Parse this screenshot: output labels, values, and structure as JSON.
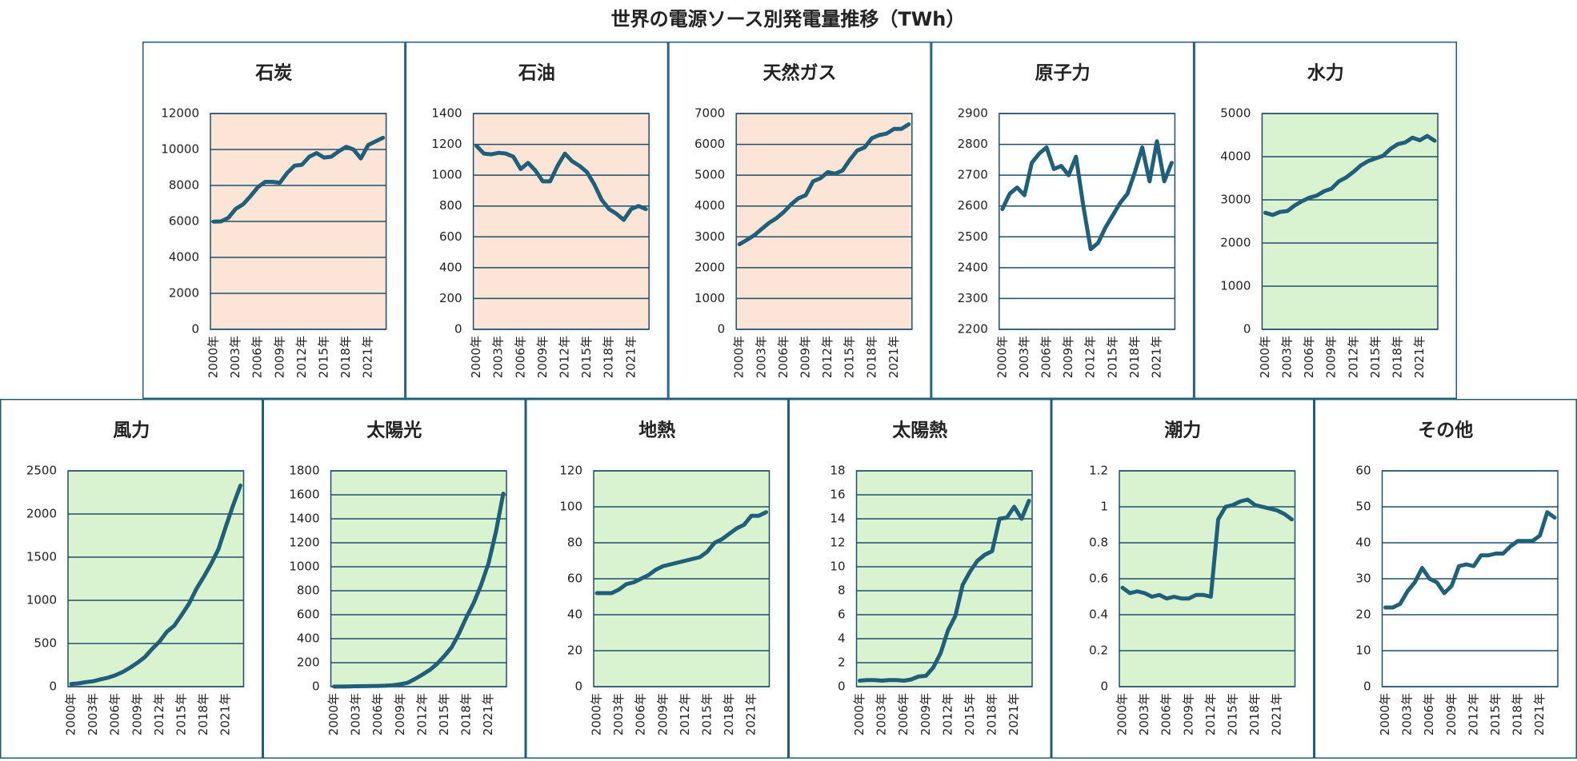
{
  "title": "世界の電源ソース別発電量推移（TWh）",
  "chart_data": [
    {
      "type": "line",
      "title": "石炭",
      "background": "#fce4d6",
      "color": "#1f5f7a",
      "grid": true,
      "categories": [
        "2000年",
        null,
        null,
        "2003年",
        null,
        null,
        "2006年",
        null,
        null,
        "2009年",
        null,
        null,
        "2012年",
        null,
        null,
        "2015年",
        null,
        null,
        "2018年",
        null,
        null,
        "2021年",
        null,
        null
      ],
      "values": [
        5990,
        6000,
        6200,
        6700,
        6950,
        7400,
        7900,
        8200,
        8200,
        8150,
        8700,
        9100,
        9150,
        9600,
        9800,
        9550,
        9600,
        9900,
        10150,
        10000,
        9500,
        10250,
        10450,
        10650
      ],
      "ylim": [
        0,
        12000
      ],
      "yticks": [
        0,
        2000,
        4000,
        6000,
        8000,
        10000,
        12000
      ]
    },
    {
      "type": "line",
      "title": "石油",
      "background": "#fce4d6",
      "color": "#1f5f7a",
      "grid": true,
      "categories": [
        "2000年",
        null,
        null,
        "2003年",
        null,
        null,
        "2006年",
        null,
        null,
        "2009年",
        null,
        null,
        "2012年",
        null,
        null,
        "2015年",
        null,
        null,
        "2018年",
        null,
        null,
        "2021年",
        null,
        null
      ],
      "values": [
        1190,
        1140,
        1135,
        1145,
        1140,
        1120,
        1040,
        1080,
        1030,
        960,
        960,
        1060,
        1140,
        1090,
        1060,
        1020,
        940,
        840,
        780,
        750,
        710,
        780,
        800,
        780
      ],
      "ylim": [
        0,
        1400
      ],
      "yticks": [
        0,
        200,
        400,
        600,
        800,
        1000,
        1200,
        1400
      ]
    },
    {
      "type": "line",
      "title": "天然ガス",
      "background": "#fce4d6",
      "color": "#1f5f7a",
      "grid": true,
      "categories": [
        "2000年",
        null,
        null,
        "2003年",
        null,
        null,
        "2006年",
        null,
        null,
        "2009年",
        null,
        null,
        "2012年",
        null,
        null,
        "2015年",
        null,
        null,
        "2018年",
        null,
        null,
        "2021年",
        null,
        null
      ],
      "values": [
        2760,
        2900,
        3050,
        3250,
        3450,
        3600,
        3800,
        4050,
        4250,
        4350,
        4800,
        4900,
        5100,
        5050,
        5150,
        5500,
        5800,
        5900,
        6200,
        6300,
        6350,
        6500,
        6500,
        6650
      ],
      "ylim": [
        0,
        7000
      ],
      "yticks": [
        0,
        1000,
        2000,
        3000,
        4000,
        5000,
        6000,
        7000
      ]
    },
    {
      "type": "line",
      "title": "原子力",
      "background": "#ffffff",
      "color": "#1f5f7a",
      "grid": true,
      "categories": [
        "2000年",
        null,
        null,
        "2003年",
        null,
        null,
        "2006年",
        null,
        null,
        "2009年",
        null,
        null,
        "2012年",
        null,
        null,
        "2015年",
        null,
        null,
        "2018年",
        null,
        null,
        "2021年",
        null,
        null
      ],
      "values": [
        2590,
        2640,
        2660,
        2635,
        2740,
        2770,
        2790,
        2720,
        2730,
        2700,
        2760,
        2600,
        2460,
        2480,
        2530,
        2570,
        2610,
        2640,
        2710,
        2790,
        2680,
        2810,
        2680,
        2740
      ],
      "ylim": [
        2200,
        2900
      ],
      "yticks": [
        2200,
        2300,
        2400,
        2500,
        2600,
        2700,
        2800,
        2900
      ]
    },
    {
      "type": "line",
      "title": "水力",
      "background": "#d9f2d0",
      "color": "#1f5f7a",
      "grid": true,
      "categories": [
        "2000年",
        null,
        null,
        "2003年",
        null,
        null,
        "2006年",
        null,
        null,
        "2009年",
        null,
        null,
        "2012年",
        null,
        null,
        "2015年",
        null,
        null,
        "2018年",
        null,
        null,
        "2021年",
        null,
        null
      ],
      "values": [
        2700,
        2650,
        2720,
        2740,
        2870,
        2970,
        3050,
        3100,
        3200,
        3260,
        3430,
        3520,
        3650,
        3800,
        3900,
        3960,
        4020,
        4180,
        4290,
        4330,
        4440,
        4380,
        4480,
        4370
      ],
      "ylim": [
        0,
        5000
      ],
      "yticks": [
        0,
        1000,
        2000,
        3000,
        4000,
        5000
      ]
    },
    {
      "type": "line",
      "title": "風力",
      "background": "#d9f2d0",
      "color": "#1f5f7a",
      "grid": true,
      "categories": [
        "2000年",
        null,
        null,
        "2003年",
        null,
        null,
        "2006年",
        null,
        null,
        "2009年",
        null,
        null,
        "2012年",
        null,
        null,
        "2015年",
        null,
        null,
        "2018年",
        null,
        null,
        "2021年",
        null,
        null
      ],
      "values": [
        31,
        38,
        52,
        63,
        85,
        104,
        132,
        170,
        220,
        277,
        342,
        437,
        522,
        636,
        706,
        830,
        960,
        1130,
        1270,
        1420,
        1590,
        1850,
        2100,
        2330
      ],
      "ylim": [
        0,
        2500
      ],
      "yticks": [
        0,
        500,
        1000,
        1500,
        2000,
        2500
      ]
    },
    {
      "type": "line",
      "title": "太陽光",
      "background": "#d9f2d0",
      "color": "#1f5f7a",
      "grid": true,
      "categories": [
        "2000年",
        null,
        null,
        "2003年",
        null,
        null,
        "2006年",
        null,
        null,
        "2009年",
        null,
        null,
        "2012年",
        null,
        null,
        "2015年",
        null,
        null,
        "2018年",
        null,
        null,
        "2021年",
        null,
        null
      ],
      "values": [
        1,
        1,
        2,
        3,
        4,
        5,
        6,
        8,
        12,
        20,
        32,
        64,
        100,
        139,
        190,
        256,
        330,
        445,
        580,
        700,
        850,
        1030,
        1290,
        1610
      ],
      "ylim": [
        0,
        1800
      ],
      "yticks": [
        0,
        200,
        400,
        600,
        800,
        1000,
        1200,
        1400,
        1600,
        1800
      ]
    },
    {
      "type": "line",
      "title": "地熱",
      "background": "#d9f2d0",
      "color": "#1f5f7a",
      "grid": true,
      "categories": [
        "2000年",
        null,
        null,
        "2003年",
        null,
        null,
        "2006年",
        null,
        null,
        "2009年",
        null,
        null,
        "2012年",
        null,
        null,
        "2015年",
        null,
        null,
        "2018年",
        null,
        null,
        "2021年",
        null,
        null
      ],
      "values": [
        52,
        52,
        52,
        54,
        57,
        58,
        60,
        62,
        65,
        67,
        68,
        69,
        70,
        71,
        72,
        75,
        80,
        82,
        85,
        88,
        90,
        95,
        95,
        97
      ],
      "ylim": [
        0,
        120
      ],
      "yticks": [
        0,
        20,
        40,
        60,
        80,
        100,
        120
      ]
    },
    {
      "type": "line",
      "title": "太陽熱",
      "background": "#d9f2d0",
      "color": "#1f5f7a",
      "grid": true,
      "categories": [
        "2000年",
        null,
        null,
        "2003年",
        null,
        null,
        "2006年",
        null,
        null,
        "2009年",
        null,
        null,
        "2012年",
        null,
        null,
        "2015年",
        null,
        null,
        "2018年",
        null,
        null,
        "2021年",
        null,
        null
      ],
      "values": [
        0.5,
        0.55,
        0.55,
        0.5,
        0.55,
        0.55,
        0.5,
        0.6,
        0.85,
        0.9,
        1.6,
        2.8,
        4.7,
        5.9,
        8.5,
        9.6,
        10.5,
        11,
        11.3,
        14,
        14.1,
        15,
        14,
        15.5
      ],
      "ylim": [
        0,
        18
      ],
      "yticks": [
        0,
        2,
        4,
        6,
        8,
        10,
        12,
        14,
        16,
        18
      ]
    },
    {
      "type": "line",
      "title": "潮力",
      "background": "#d9f2d0",
      "color": "#1f5f7a",
      "grid": true,
      "categories": [
        "2000年",
        null,
        null,
        "2003年",
        null,
        null,
        "2006年",
        null,
        null,
        "2009年",
        null,
        null,
        "2012年",
        null,
        null,
        "2015年",
        null,
        null,
        "2018年",
        null,
        null,
        "2021年",
        null,
        null
      ],
      "values": [
        0.55,
        0.52,
        0.53,
        0.52,
        0.5,
        0.51,
        0.49,
        0.5,
        0.49,
        0.49,
        0.51,
        0.51,
        0.5,
        0.93,
        1.0,
        1.01,
        1.03,
        1.04,
        1.01,
        1.0,
        0.99,
        0.98,
        0.96,
        0.93
      ],
      "ylim": [
        0,
        1.2
      ],
      "yticks": [
        0,
        0.2,
        0.4,
        0.6,
        0.8,
        1,
        1.2
      ]
    },
    {
      "type": "line",
      "title": "その他",
      "background": "#ffffff",
      "color": "#1f5f7a",
      "grid": true,
      "categories": [
        "2000年",
        null,
        null,
        "2003年",
        null,
        null,
        "2006年",
        null,
        null,
        "2009年",
        null,
        null,
        "2012年",
        null,
        null,
        "2015年",
        null,
        null,
        "2018年",
        null,
        null,
        "2021年",
        null,
        null
      ],
      "values": [
        22,
        22,
        23,
        26.5,
        29,
        33,
        30,
        29,
        26,
        28,
        33.5,
        34,
        33.5,
        36.5,
        36.5,
        37,
        37,
        39,
        40.5,
        40.5,
        40.5,
        42,
        48.5,
        47
      ],
      "ylim": [
        0,
        60
      ],
      "yticks": [
        0,
        10,
        20,
        30,
        40,
        50,
        60
      ]
    }
  ]
}
